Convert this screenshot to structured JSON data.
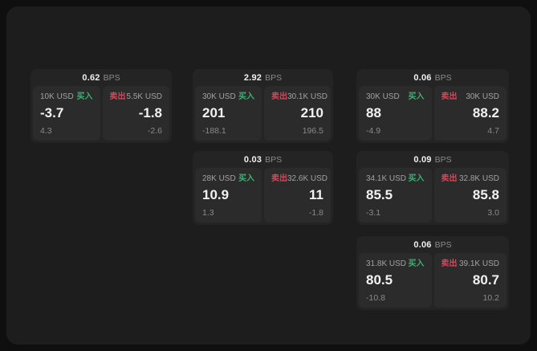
{
  "labels": {
    "bps_unit": "BPS",
    "buy": "买入",
    "sell": "卖出"
  },
  "colors": {
    "buy": "#3fae73",
    "sell": "#cc4b5c",
    "page_background": "#0f0f0f",
    "panel_background": "#1d1d1d",
    "card_background": "#242424",
    "tile_background": "#2b2b2b"
  },
  "cards": [
    {
      "bps": "0.62",
      "col": 1,
      "row": 1,
      "buy": {
        "notional": "10K USD",
        "value": "-3.7",
        "delta": "4.3"
      },
      "sell": {
        "notional": "5.5K USD",
        "value": "-1.8",
        "delta": "-2.6"
      }
    },
    {
      "bps": "2.92",
      "col": 2,
      "row": 1,
      "buy": {
        "notional": "30K USD",
        "value": "201",
        "delta": "-188.1"
      },
      "sell": {
        "notional": "30.1K USD",
        "value": "210",
        "delta": "196.5"
      }
    },
    {
      "bps": "0.06",
      "col": 3,
      "row": 1,
      "buy": {
        "notional": "30K USD",
        "value": "88",
        "delta": "-4.9"
      },
      "sell": {
        "notional": "30K USD",
        "value": "88.2",
        "delta": "4.7"
      }
    },
    {
      "bps": "0.03",
      "col": 2,
      "row": 2,
      "buy": {
        "notional": "28K USD",
        "value": "10.9",
        "delta": "1.3"
      },
      "sell": {
        "notional": "32.6K USD",
        "value": "11",
        "delta": "-1.8"
      }
    },
    {
      "bps": "0.09",
      "col": 3,
      "row": 2,
      "buy": {
        "notional": "34.1K USD",
        "value": "85.5",
        "delta": "-3.1"
      },
      "sell": {
        "notional": "32.8K USD",
        "value": "85.8",
        "delta": "3.0"
      }
    },
    {
      "bps": "0.06",
      "col": 3,
      "row": 3,
      "buy": {
        "notional": "31.8K USD",
        "value": "80.5",
        "delta": "-10.8"
      },
      "sell": {
        "notional": "39.1K USD",
        "value": "80.7",
        "delta": "10.2"
      }
    }
  ]
}
